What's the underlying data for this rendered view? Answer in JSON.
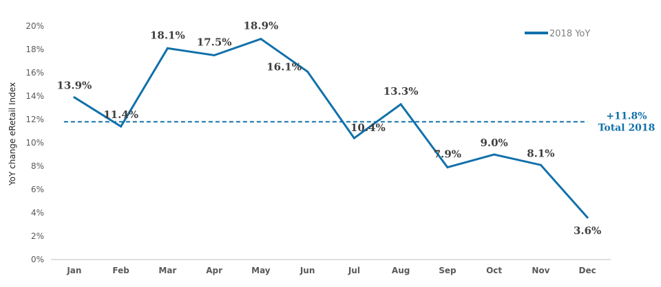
{
  "chart_data": {
    "type": "line",
    "ylabel": "YoY change eRetail Index",
    "ylim": [
      0,
      20
    ],
    "y_ticks": [
      "0%",
      "2%",
      "4%",
      "6%",
      "8%",
      "10%",
      "12%",
      "14%",
      "16%",
      "18%",
      "20%"
    ],
    "y_tick_values": [
      0,
      2,
      4,
      6,
      8,
      10,
      12,
      14,
      16,
      18,
      20
    ],
    "categories": [
      "Jan",
      "Feb",
      "Mar",
      "Apr",
      "May",
      "Jun",
      "Jul",
      "Aug",
      "Sep",
      "Oct",
      "Nov",
      "Dec"
    ],
    "grid": false,
    "legend_position": "top-right",
    "series": [
      {
        "name": "2018 YoY",
        "color": "#1170aa",
        "values": [
          13.9,
          11.4,
          18.1,
          17.5,
          18.9,
          16.1,
          10.4,
          13.3,
          7.9,
          9.0,
          8.1,
          3.6
        ],
        "labels": [
          "13.9%",
          "11.4%",
          "18.1%",
          "17.5%",
          "18.9%",
          "16.1%",
          "10.4%",
          "13.3%",
          "7.9%",
          "9.0%",
          "8.1%",
          "3.6%"
        ]
      }
    ],
    "reference_line": {
      "value": 11.8,
      "style": "dashed",
      "color": "#1170aa",
      "label_value": "+11.8%",
      "label_text": "Total 2018"
    }
  }
}
